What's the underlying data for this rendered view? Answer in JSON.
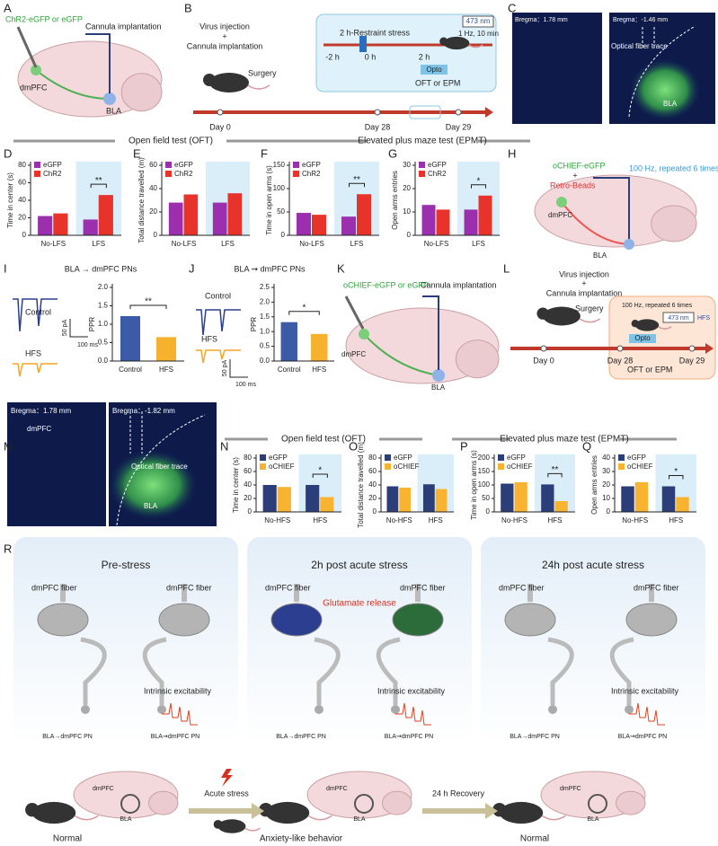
{
  "panel_letters": [
    "A",
    "B",
    "C",
    "D",
    "E",
    "F",
    "G",
    "H",
    "I",
    "J",
    "K",
    "L",
    "M",
    "N",
    "O",
    "P",
    "Q",
    "R"
  ],
  "headers": [
    "Open field test (OFT)",
    "Elevated plus maze test (EPMT)",
    "Open field test (OFT)",
    "Elevated plus maze test (EPMT)"
  ],
  "panel_a": {
    "virus": "ChR2-eGFP or eGFP",
    "cannula": "Cannula implantation",
    "region1": "dmPFC",
    "region2": "BLA"
  },
  "panel_b": {
    "virus": "Virus injection",
    "plus": "+",
    "cannula": "Cannula implantation",
    "surgery": "Surgery",
    "days": [
      "Day 0",
      "Day 28",
      "Day 29"
    ],
    "stress": "2 h-Restraint stress",
    "times": [
      "-2 h",
      "0 h",
      "2 h"
    ],
    "laser": "473 nm",
    "stim": "1 Hz, 10 min",
    "opto": "Opto",
    "tests": "OFT or  EPM"
  },
  "panel_c": {
    "bregma1": "Bregma：1.78 mm",
    "bregma2": "Bregma：-1.46 mm",
    "fiber": "Optical fiber trace",
    "region": "BLA"
  },
  "panel_h": {
    "virus": "oCHIEF-eGFP",
    "plus": "+",
    "beads": "Retro-Beads",
    "stim": "100 Hz, repeated 6 times",
    "region1": "dmPFC",
    "region2": "BLA"
  },
  "panel_i": {
    "control": "Control",
    "hfs": "HFS",
    "scale_y": "50 pA",
    "scale_x": "100 ms"
  },
  "panel_j": {
    "control": "Control",
    "hfs": "HFS",
    "scale_y": "50 pA",
    "scale_x": "100 ms"
  },
  "panel_k": {
    "virus": "oCHIEF-eGFP or eGFP",
    "cannula": "Cannula implantation",
    "region1": "dmPFC",
    "region2": "BLA"
  },
  "panel_l": {
    "virus": "Virus injection",
    "plus": "+",
    "cannula": "Cannula implantation",
    "surgery": "Surgery",
    "days": [
      "Day 0",
      "Day 28",
      "Day 29"
    ],
    "stim": "100 Hz, repeated 6 times",
    "laser": "473 nm",
    "hfs": "HFS",
    "opto": "Opto",
    "tests": "OFT or  EPM"
  },
  "panel_m": {
    "bregma1": "Bregma：1.78 mm",
    "region1": "dmPFC",
    "bregma2": "Bregma：-1.82 mm",
    "fiber": "Optical fiber trace",
    "region2": "BLA"
  },
  "panel_r": {
    "stages": [
      {
        "title": "Pre-stress",
        "fiber_left": "dmPFC fiber",
        "fiber_right": "dmPFC fiber",
        "excitability": "Intrinsic excitability",
        "pn_left": "BLA→dmPFC PN",
        "pn_right": "BLA⇝dmPFC PN",
        "region1": "dmPFC",
        "region2": "BLA",
        "state": "Normal"
      },
      {
        "title": "2h post acute stress",
        "fiber_left": "dmPFC fiber",
        "fiber_right": "dmPFC fiber",
        "release": "Glutamate release",
        "excitability": "Intrinsic excitability",
        "pn_left": "BLA→dmPFC PN",
        "pn_right": "BLA⇝dmPFC PN",
        "region1": "dmPFC",
        "region2": "BLA",
        "state": "Anxiety-like behavior"
      },
      {
        "title": "24h post acute stress",
        "fiber_left": "dmPFC fiber",
        "fiber_right": "dmPFC fiber",
        "excitability": "Intrinsic excitability",
        "pn_left": "BLA→dmPFC PN",
        "pn_right": "BLA⇝dmPFC PN",
        "region1": "dmPFC",
        "region2": "BLA",
        "state": "Normal"
      }
    ],
    "transitions": [
      "Acute stress",
      "24 h Recovery"
    ]
  },
  "chart_data": [
    {
      "type": "bar",
      "ylabel": "Time in center (s)",
      "categories": [
        "No-LFS",
        "LFS"
      ],
      "series": [
        {
          "name": "eGFP",
          "color": "#9b2fae",
          "values": [
            22,
            18
          ]
        },
        {
          "name": "ChR2",
          "color": "#e8332a",
          "values": [
            25,
            46
          ]
        }
      ],
      "ylim": [
        0,
        80
      ],
      "yticks": [
        0,
        20,
        40,
        60,
        80
      ],
      "sig": [
        null,
        "**"
      ]
    },
    {
      "type": "bar",
      "ylabel": "Total distance travelled (m)",
      "categories": [
        "No-LFS",
        "LFS"
      ],
      "series": [
        {
          "name": "eGFP",
          "color": "#9b2fae",
          "values": [
            28,
            28
          ]
        },
        {
          "name": "ChR2",
          "color": "#e8332a",
          "values": [
            35,
            36
          ]
        }
      ],
      "ylim": [
        0,
        60
      ],
      "yticks": [
        0,
        20,
        40,
        60
      ]
    },
    {
      "type": "bar",
      "ylabel": "Time in open arms (s)",
      "categories": [
        "No-LFS",
        "LFS"
      ],
      "series": [
        {
          "name": "eGFP",
          "color": "#9b2fae",
          "values": [
            48,
            40
          ]
        },
        {
          "name": "ChR2",
          "color": "#e8332a",
          "values": [
            44,
            88
          ]
        }
      ],
      "ylim": [
        0,
        150
      ],
      "yticks": [
        0,
        50,
        100,
        150
      ],
      "sig": [
        null,
        "**"
      ]
    },
    {
      "type": "bar",
      "ylabel": "Open arms entries",
      "categories": [
        "No-LFS",
        "LFS"
      ],
      "series": [
        {
          "name": "eGFP",
          "color": "#9b2fae",
          "values": [
            13,
            11
          ]
        },
        {
          "name": "ChR2",
          "color": "#e8332a",
          "values": [
            11,
            17
          ]
        }
      ],
      "ylim": [
        0,
        30
      ],
      "yticks": [
        0,
        10,
        20,
        30
      ],
      "sig": [
        null,
        "*"
      ]
    },
    {
      "type": "bar",
      "title": "BLA → dmPFC PNs",
      "ylabel": "PPR",
      "categories": [
        "Control",
        "HFS"
      ],
      "values": [
        1.22,
        0.65
      ],
      "colors": [
        "#3c5aa6",
        "#f6b12d"
      ],
      "ylim": [
        0,
        2
      ],
      "yticks": [
        {
          "value": 0,
          "label": "0.0"
        },
        0.5,
        {
          "value": 1,
          "label": "1.0"
        },
        1.5,
        {
          "value": 2,
          "label": "2.0"
        }
      ],
      "sig": "**"
    },
    {
      "type": "bar",
      "title": "BLA ⇝ dmPFC PNs",
      "ylabel": "PPR",
      "categories": [
        "Control",
        "HFS"
      ],
      "values": [
        1.32,
        0.92
      ],
      "colors": [
        "#3c5aa6",
        "#f6b12d"
      ],
      "ylim": [
        0,
        2.5
      ],
      "yticks": [
        {
          "value": 0,
          "label": "0.0"
        },
        0.5,
        {
          "value": 1,
          "label": "1.0"
        },
        1.5,
        {
          "value": 2,
          "label": "2.0"
        },
        2.5
      ],
      "sig": "*"
    },
    {
      "type": "bar",
      "ylabel": "Time in center (s)",
      "categories": [
        "No-HFS",
        "HFS"
      ],
      "series": [
        {
          "name": "eGFP",
          "color": "#2c3e7a",
          "values": [
            40,
            40
          ]
        },
        {
          "name": "oCHIEF",
          "color": "#f8b431",
          "values": [
            37,
            22
          ]
        }
      ],
      "ylim": [
        0,
        80
      ],
      "yticks": [
        0,
        20,
        40,
        60,
        80
      ],
      "sig": [
        null,
        "*"
      ]
    },
    {
      "type": "bar",
      "ylabel": "Total distance travelled (m)",
      "categories": [
        "No-HFS",
        "HFS"
      ],
      "series": [
        {
          "name": "eGFP",
          "color": "#2c3e7a",
          "values": [
            38,
            41
          ]
        },
        {
          "name": "oCHIEF",
          "color": "#f8b431",
          "values": [
            36,
            34
          ]
        }
      ],
      "ylim": [
        0,
        80
      ],
      "yticks": [
        0,
        20,
        40,
        60,
        80
      ]
    },
    {
      "type": "bar",
      "ylabel": "Time in open arms (s)",
      "categories": [
        "No-HFS",
        "HFS"
      ],
      "series": [
        {
          "name": "eGFP",
          "color": "#2c3e7a",
          "values": [
            105,
            102
          ]
        },
        {
          "name": "oCHIEF",
          "color": "#f8b431",
          "values": [
            110,
            40
          ]
        }
      ],
      "ylim": [
        0,
        200
      ],
      "yticks": [
        0,
        50,
        100,
        150,
        200
      ],
      "sig": [
        null,
        "**"
      ]
    },
    {
      "type": "bar",
      "ylabel": "Open arms entries",
      "categories": [
        "No-HFS",
        "HFS"
      ],
      "series": [
        {
          "name": "eGFP",
          "color": "#2c3e7a",
          "values": [
            19,
            19
          ]
        },
        {
          "name": "oCHIEF",
          "color": "#f8b431",
          "values": [
            22,
            11
          ]
        }
      ],
      "ylim": [
        0,
        40
      ],
      "yticks": [
        0,
        10,
        20,
        30,
        40
      ],
      "sig": [
        null,
        "*"
      ]
    }
  ]
}
